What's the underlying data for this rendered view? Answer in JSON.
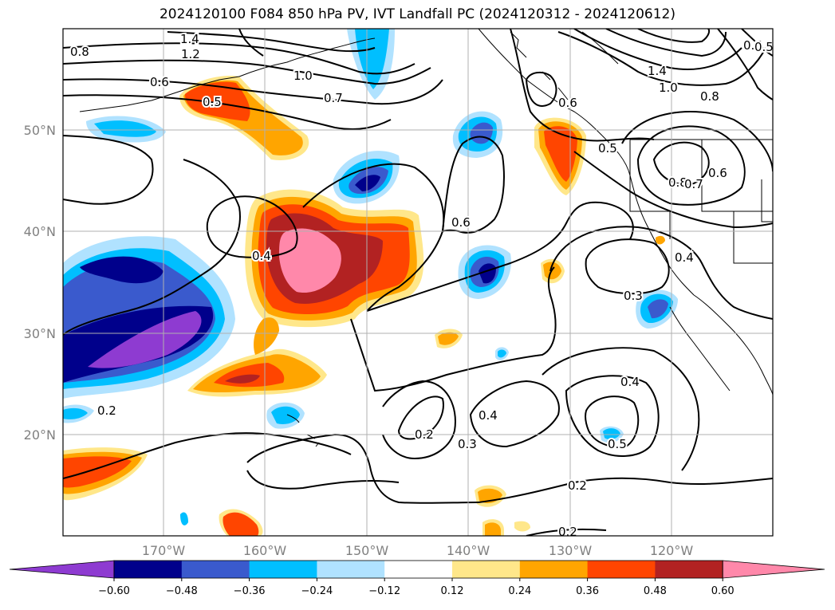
{
  "title": "2024120100 F084 850 hPa PV, IVT Landfall PC (2024120312 - 2024120612)",
  "lat_labels": [
    "50°N",
    "40°N",
    "30°N",
    "20°N"
  ],
  "lon_labels": [
    "170°W",
    "160°W",
    "150°W",
    "140°W",
    "130°W",
    "120°W"
  ],
  "contour_labels": [
    "1.4",
    "1.2",
    "0.8",
    "1.0",
    "0.6",
    "0.5",
    "0.7",
    "0.4",
    "0.6",
    "0.5",
    "0.6",
    "1.4",
    "1.0",
    "0.8",
    "0.8",
    "0.7",
    "0.6",
    "0.4",
    "0.3",
    "0.2",
    "0.2",
    "0.3",
    "0.4",
    "0.4",
    "0.5",
    "0.2",
    "0.2",
    "0.6",
    "0.5"
  ],
  "colorbar": {
    "ticks": [
      "−0.60",
      "−0.48",
      "−0.36",
      "−0.24",
      "−0.12",
      "0.12",
      "0.24",
      "0.36",
      "0.48",
      "0.60"
    ],
    "colors": [
      "#8e3bd1",
      "#00008b",
      "#3a5acd",
      "#00bfff",
      "#b0e2ff",
      "#ffffff",
      "#ffe78a",
      "#ffa500",
      "#ff4500",
      "#b22222",
      "#ff88aa"
    ],
    "range": [
      -0.72,
      0.72
    ]
  },
  "colors": {
    "grid": "#b0b0b0",
    "contour": "#000000",
    "tick_text": "#808080"
  }
}
